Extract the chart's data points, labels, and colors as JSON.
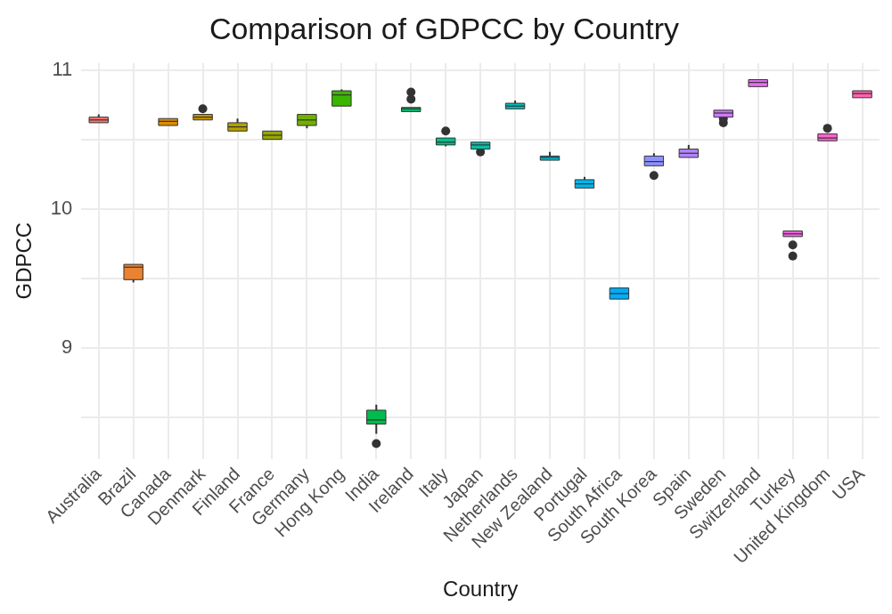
{
  "chart_data": {
    "type": "box",
    "title": "Comparison of GDPCC by Country",
    "xlabel": "Country",
    "ylabel": "GDPCC",
    "categories": [
      "Australia",
      "Brazil",
      "Canada",
      "Denmark",
      "Finland",
      "France",
      "Germany",
      "Hong Kong",
      "India",
      "Ireland",
      "Italy",
      "Japan",
      "Netherlands",
      "New Zealand",
      "Portugal",
      "South Africa",
      "South Korea",
      "Spain",
      "Sweden",
      "Switzerland",
      "Turkey",
      "United Kingdom",
      "USA"
    ],
    "colors": [
      "#F8766D",
      "#EA8331",
      "#DC8D00",
      "#CA9700",
      "#B3A000",
      "#97A800",
      "#72B000",
      "#39B600",
      "#00BB4E",
      "#00BE70",
      "#00C08D",
      "#00C1A7",
      "#00BFC0",
      "#00BBD6",
      "#00B5E8",
      "#00ADF8",
      "#8F91FF",
      "#B385FF",
      "#D078FF",
      "#E66DF3",
      "#F564E3",
      "#FD61D1",
      "#FF64B0"
    ],
    "boxes": [
      {
        "low": 10.62,
        "q1": 10.62,
        "median": 10.64,
        "q3": 10.66,
        "high": 10.68
      },
      {
        "low": 9.47,
        "q1": 9.49,
        "median": 9.58,
        "q3": 9.6,
        "high": 9.6
      },
      {
        "low": 10.6,
        "q1": 10.6,
        "median": 10.63,
        "q3": 10.65,
        "high": 10.65
      },
      {
        "low": 10.64,
        "q1": 10.64,
        "median": 10.66,
        "q3": 10.68,
        "high": 10.68,
        "outliers": [
          10.72
        ]
      },
      {
        "low": 10.56,
        "q1": 10.56,
        "median": 10.59,
        "q3": 10.62,
        "high": 10.65
      },
      {
        "low": 10.5,
        "q1": 10.5,
        "median": 10.53,
        "q3": 10.56,
        "high": 10.56
      },
      {
        "low": 10.58,
        "q1": 10.6,
        "median": 10.64,
        "q3": 10.68,
        "high": 10.68
      },
      {
        "low": 10.74,
        "q1": 10.74,
        "median": 10.82,
        "q3": 10.85,
        "high": 10.86
      },
      {
        "low": 8.38,
        "q1": 8.45,
        "median": 8.48,
        "q3": 8.55,
        "high": 8.59,
        "outliers": [
          8.31
        ]
      },
      {
        "low": 10.7,
        "q1": 10.7,
        "median": 10.72,
        "q3": 10.73,
        "high": 10.73,
        "outliers": [
          10.79,
          10.84
        ]
      },
      {
        "low": 10.45,
        "q1": 10.46,
        "median": 10.48,
        "q3": 10.51,
        "high": 10.51,
        "outliers": [
          10.56
        ]
      },
      {
        "low": 10.43,
        "q1": 10.43,
        "median": 10.46,
        "q3": 10.48,
        "high": 10.48,
        "outliers": [
          10.41
        ]
      },
      {
        "low": 10.72,
        "q1": 10.72,
        "median": 10.74,
        "q3": 10.76,
        "high": 10.78
      },
      {
        "low": 10.35,
        "q1": 10.35,
        "median": 10.37,
        "q3": 10.38,
        "high": 10.41
      },
      {
        "low": 10.15,
        "q1": 10.15,
        "median": 10.18,
        "q3": 10.21,
        "high": 10.23
      },
      {
        "low": 9.35,
        "q1": 9.35,
        "median": 9.39,
        "q3": 9.43,
        "high": 9.43
      },
      {
        "low": 10.31,
        "q1": 10.31,
        "median": 10.34,
        "q3": 10.38,
        "high": 10.4,
        "outliers": [
          10.24
        ]
      },
      {
        "low": 10.37,
        "q1": 10.37,
        "median": 10.4,
        "q3": 10.43,
        "high": 10.46
      },
      {
        "low": 10.66,
        "q1": 10.66,
        "median": 10.69,
        "q3": 10.71,
        "high": 10.71,
        "outliers": [
          10.65,
          10.62
        ]
      },
      {
        "low": 10.88,
        "q1": 10.88,
        "median": 10.91,
        "q3": 10.93,
        "high": 10.93
      },
      {
        "low": 9.8,
        "q1": 9.8,
        "median": 9.82,
        "q3": 9.84,
        "high": 9.84,
        "outliers": [
          9.74,
          9.66
        ]
      },
      {
        "low": 10.49,
        "q1": 10.49,
        "median": 10.51,
        "q3": 10.54,
        "high": 10.54,
        "outliers": [
          10.58
        ]
      },
      {
        "low": 10.8,
        "q1": 10.8,
        "median": 10.83,
        "q3": 10.85,
        "high": 10.85
      }
    ],
    "ylim": [
      8.2,
      11.05
    ],
    "yticks": [
      {
        "value": 8.5,
        "label": null
      },
      9,
      {
        "value": 9.5,
        "label": null
      },
      10,
      {
        "value": 10.5,
        "label": null
      },
      11
    ],
    "grid": true
  }
}
